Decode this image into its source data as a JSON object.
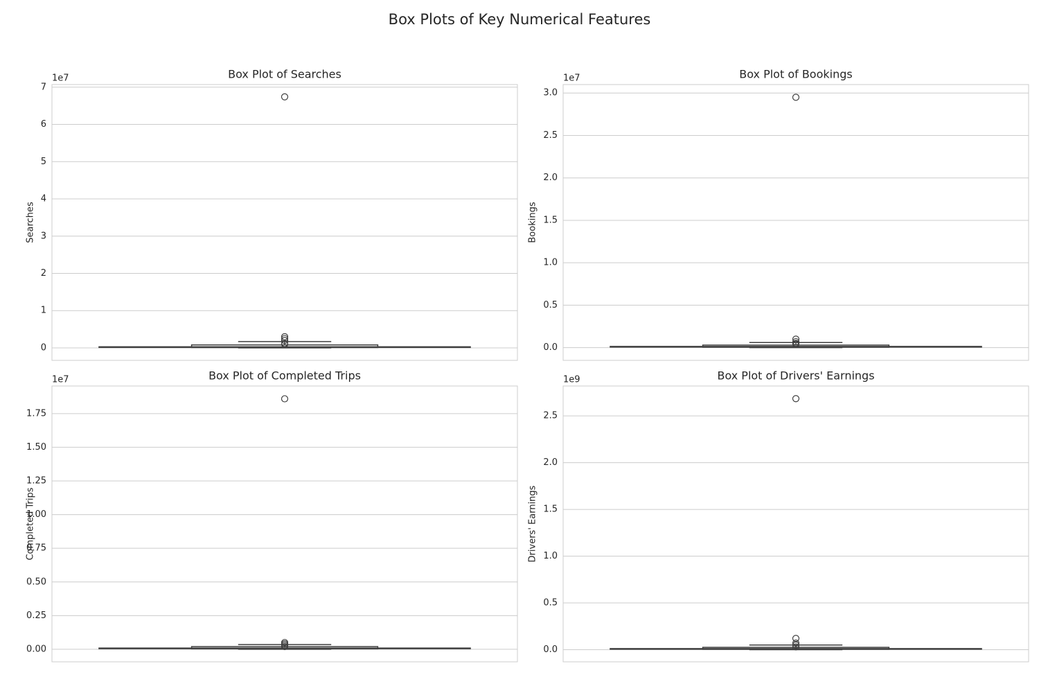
{
  "title": "Box Plots of Key Numerical Features",
  "chart_data": [
    {
      "type": "box",
      "title": "Box Plot of Searches",
      "ylabel": "Searches",
      "offset_label": "1e7",
      "color": "#3f3f3f",
      "grid": true,
      "ylim": [
        -0.335,
        7.07
      ],
      "yticks": [
        0,
        1,
        2,
        3,
        4,
        5,
        6,
        7
      ],
      "box": {
        "whisker_low": 0,
        "q1": 0.01,
        "median": 0.02,
        "q3": 0.08,
        "whisker_high": 0.17
      },
      "outliers": [
        0.3,
        0.25,
        0.2,
        0.12,
        0.1,
        6.74
      ]
    },
    {
      "type": "box",
      "title": "Box Plot of Bookings",
      "ylabel": "Bookings",
      "offset_label": "1e7",
      "color": "#3f3f3f",
      "grid": true,
      "ylim": [
        -0.15,
        3.1
      ],
      "yticks": [
        {
          "value": 0,
          "label": "0.0"
        },
        {
          "value": 0.5,
          "label": "0.5"
        },
        {
          "value": 1,
          "label": "1.0"
        },
        {
          "value": 1.5,
          "label": "1.5"
        },
        {
          "value": 2,
          "label": "2.0"
        },
        {
          "value": 2.5,
          "label": "2.5"
        },
        {
          "value": 3,
          "label": "3.0"
        }
      ],
      "box": {
        "whisker_low": 0,
        "q1": 0.005,
        "median": 0.01,
        "q3": 0.03,
        "whisker_high": 0.06
      },
      "outliers": [
        0.1,
        0.07,
        0.05,
        0.04,
        2.95
      ]
    },
    {
      "type": "box",
      "title": "Box Plot of Completed Trips",
      "ylabel": "Completed Trips",
      "offset_label": "1e7",
      "color": "#3f3f3f",
      "grid": true,
      "ylim": [
        -0.093,
        1.955
      ],
      "yticks": [
        {
          "value": 0,
          "label": "0.00"
        },
        {
          "value": 0.25,
          "label": "0.25"
        },
        {
          "value": 0.5,
          "label": "0.50"
        },
        {
          "value": 0.75,
          "label": "0.75"
        },
        {
          "value": 1,
          "label": "1.00"
        },
        {
          "value": 1.25,
          "label": "1.25"
        },
        {
          "value": 1.5,
          "label": "1.50"
        },
        {
          "value": 1.75,
          "label": "1.75"
        }
      ],
      "box": {
        "whisker_low": 0,
        "q1": 0.003,
        "median": 0.007,
        "q3": 0.02,
        "whisker_high": 0.035
      },
      "outliers": [
        0.05,
        0.04,
        0.03,
        0.02,
        1.86
      ]
    },
    {
      "type": "box",
      "title": "Box Plot of Drivers' Earnings",
      "ylabel": "Drivers' Earnings",
      "offset_label": "1e9",
      "color": "#3f3f3f",
      "grid": true,
      "ylim": [
        -0.13,
        2.82
      ],
      "yticks": [
        {
          "value": 0,
          "label": "0.0"
        },
        {
          "value": 0.5,
          "label": "0.5"
        },
        {
          "value": 1,
          "label": "1.0"
        },
        {
          "value": 1.5,
          "label": "1.5"
        },
        {
          "value": 2,
          "label": "2.0"
        },
        {
          "value": 2.5,
          "label": "2.5"
        }
      ],
      "box": {
        "whisker_low": 0,
        "q1": 0.004,
        "median": 0.008,
        "q3": 0.025,
        "whisker_high": 0.05
      },
      "outliers": [
        0.12,
        0.07,
        0.05,
        0.03,
        2.685
      ]
    }
  ]
}
